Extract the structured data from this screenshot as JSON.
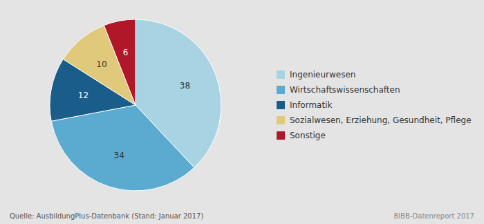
{
  "chart_data": {
    "type": "pie",
    "categories": [
      "Ingenieurwesen",
      "Wirtschaftswissenschaften",
      "Informatik",
      "Sozialwesen, Erziehung, Gesundheit, Pflege",
      "Sonstige"
    ],
    "values": [
      38,
      34,
      12,
      10,
      6
    ],
    "colors": [
      "#a8d3e3",
      "#5aabcf",
      "#1a5c8a",
      "#e0c97a",
      "#b0182a"
    ],
    "data_labels": true,
    "legend": "right",
    "annotations": [
      "Quelle: AusbildungPlus-Datenbank (Stand: Januar 2017)",
      "BIBB-Datenreport 2017"
    ]
  }
}
